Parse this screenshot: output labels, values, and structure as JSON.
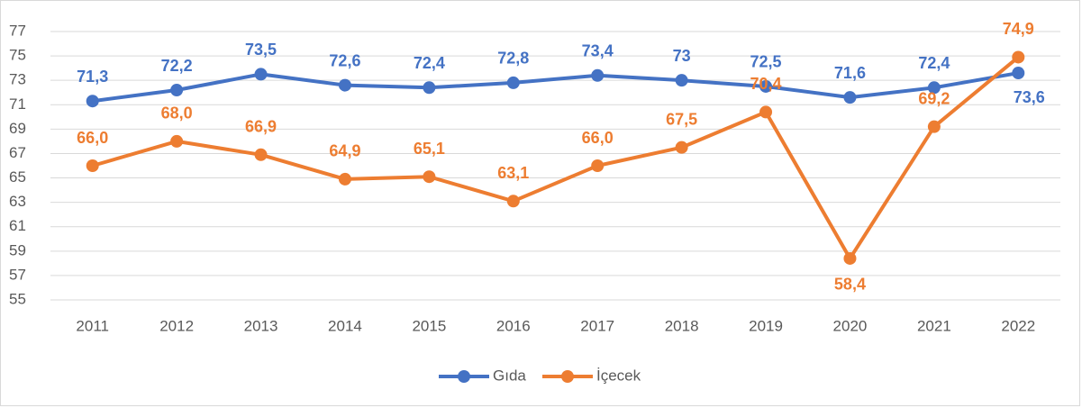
{
  "chart_data": {
    "type": "line",
    "categories": [
      "2011",
      "2012",
      "2013",
      "2014",
      "2015",
      "2016",
      "2017",
      "2018",
      "2019",
      "2020",
      "2021",
      "2022"
    ],
    "series": [
      {
        "name": "Gıda",
        "color": "#4472c4",
        "values": [
          71.3,
          72.2,
          73.5,
          72.6,
          72.4,
          72.8,
          73.4,
          73,
          72.5,
          71.6,
          72.4,
          73.6
        ],
        "value_labels": [
          "71,3",
          "72,2",
          "73,5",
          "72,6",
          "72,4",
          "72,8",
          "73,4",
          "73",
          "72,5",
          "71,6",
          "72,4",
          "73,6"
        ]
      },
      {
        "name": "İçecek",
        "color": "#ed7d31",
        "values": [
          66.0,
          68.0,
          66.9,
          64.9,
          65.1,
          63.1,
          66.0,
          67.5,
          70.4,
          58.4,
          69.2,
          74.9
        ],
        "value_labels": [
          "66,0",
          "68,0",
          "66,9",
          "64,9",
          "65,1",
          "63,1",
          "66,0",
          "67,5",
          "70,4",
          "58,4",
          "69,2",
          "74,9"
        ]
      }
    ],
    "ylim": [
      55,
      77
    ],
    "yticks": [
      55,
      57,
      59,
      61,
      63,
      65,
      67,
      69,
      71,
      73,
      75,
      77
    ],
    "grid": true,
    "legend": "bottom"
  }
}
